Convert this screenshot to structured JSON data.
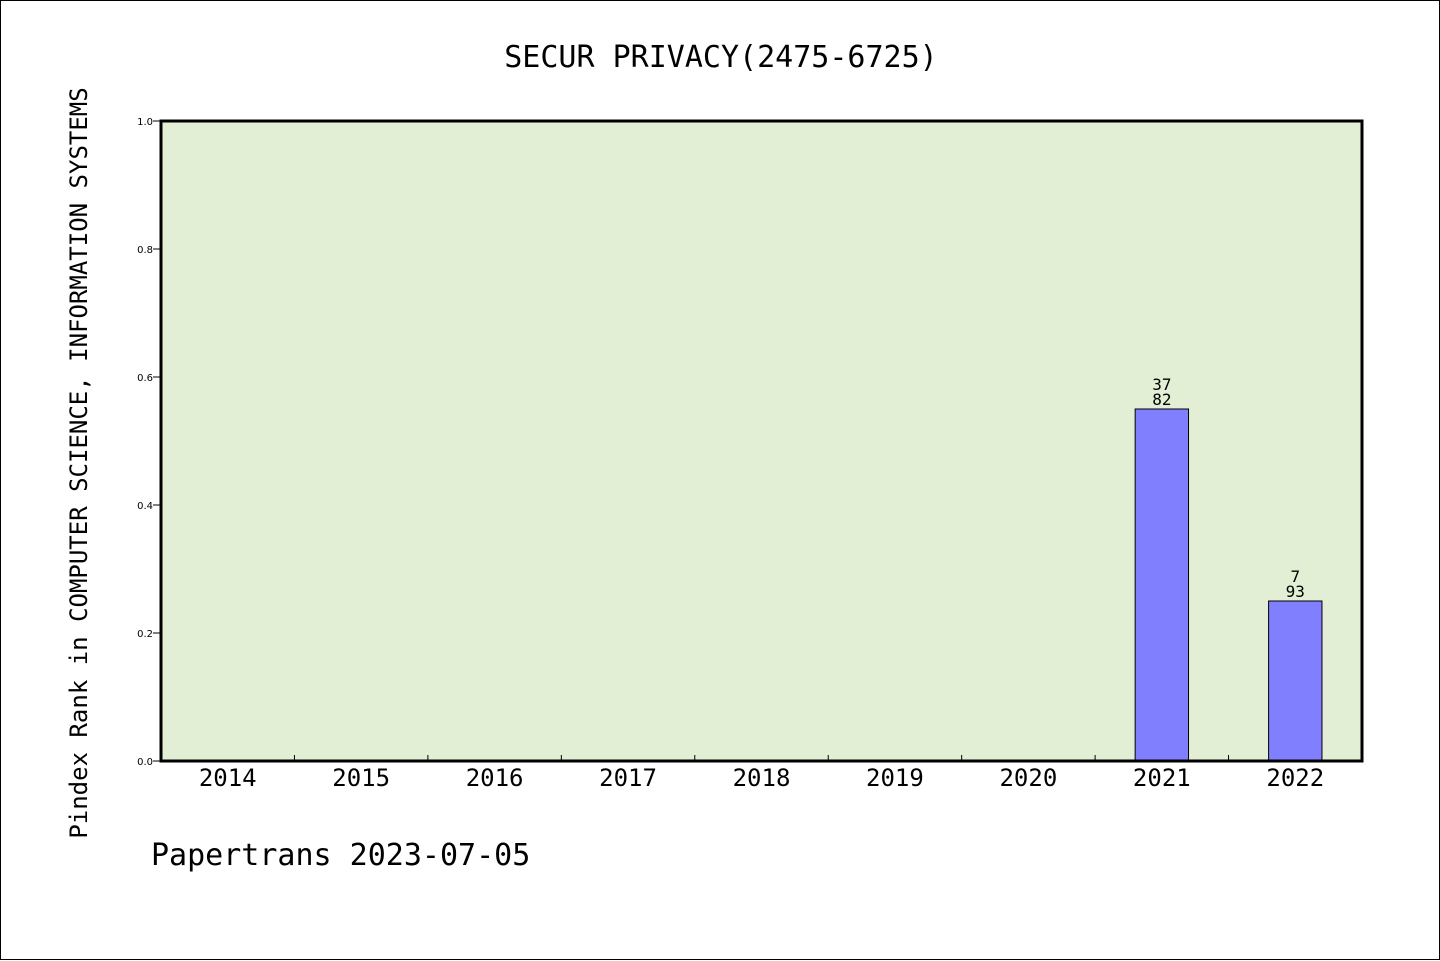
{
  "chart_data": {
    "type": "bar",
    "title": "SECUR PRIVACY(2475-6725)",
    "xlabel": "",
    "ylabel": "Pindex Rank in COMPUTER SCIENCE, INFORMATION SYSTEMS",
    "categories": [
      "2014",
      "2015",
      "2016",
      "2017",
      "2018",
      "2019",
      "2020",
      "2021",
      "2022"
    ],
    "values": [
      null,
      null,
      null,
      null,
      null,
      null,
      null,
      0.55,
      0.25
    ],
    "bar_labels": [
      null,
      null,
      null,
      null,
      null,
      null,
      null,
      {
        "top": "37",
        "bottom": "82"
      },
      {
        "top": "7",
        "bottom": "93"
      }
    ],
    "ylim": [
      0,
      1.0
    ],
    "yticks": [
      "0.0",
      "0.2",
      "0.4",
      "0.6",
      "0.8",
      "1.0"
    ],
    "grid": false,
    "legend": "none"
  },
  "footer": "Papertrans 2023-07-05",
  "colors": {
    "plot_background": "#e2efd5",
    "bar_fill": "#8080ff",
    "bar_stroke": "#000000",
    "axis": "#000000"
  }
}
